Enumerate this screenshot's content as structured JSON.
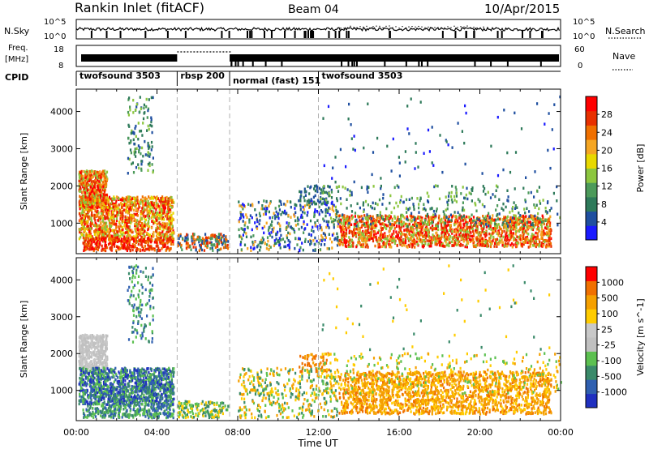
{
  "header": {
    "station": "Rankin Inlet (fitACF)",
    "beam": "Beam 04",
    "date": "10/Apr/2015"
  },
  "strip1": {
    "left_label": "N.Sky",
    "right_label": "N.Search",
    "left_ticks": [
      "10^5",
      "10^0"
    ],
    "right_ticks": [
      "10^5",
      "10^0"
    ]
  },
  "strip2": {
    "left_label_1": "Freq.",
    "left_label_2": "[MHz]",
    "right_label": "Nave",
    "left_ticks": [
      "18",
      "8"
    ],
    "right_ticks": [
      "60",
      "0"
    ]
  },
  "cpid": {
    "label": "CPID",
    "modes": [
      {
        "name": "twofsound 3503",
        "start_h": 0.0,
        "end_h": 5.0
      },
      {
        "name": "rbsp 200",
        "start_h": 5.0,
        "end_h": 7.6
      },
      {
        "name": "normal (fast) 151",
        "start_h": 7.6,
        "end_h": 12.0
      },
      {
        "name": "twofsound 3503",
        "start_h": 12.0,
        "end_h": 24.0
      }
    ]
  },
  "colors": {
    "power": [
      "#1a1aff",
      "#1f4fa0",
      "#2e7a5a",
      "#4c9a5a",
      "#8cc63f",
      "#e8d800",
      "#f5a623",
      "#f07000",
      "#e83000",
      "#ff0000"
    ],
    "velocity": [
      "#2030c0",
      "#3060b0",
      "#3a8a6a",
      "#5cc050",
      "#c0c0c0",
      "#c8c8c8",
      "#ffcc00",
      "#f5a000",
      "#f07000",
      "#ff0000"
    ]
  },
  "chart_data": [
    {
      "type": "heatmap",
      "title": "Power",
      "xlabel": "",
      "ylabel": "Slant Range [km]",
      "xlim": [
        0,
        24
      ],
      "ylim": [
        180,
        4600
      ],
      "y_ticks": [
        "1000",
        "2000",
        "3000",
        "4000"
      ],
      "colorbar": {
        "label": "Power [dB]",
        "ticks": [
          "4",
          "8",
          "12",
          "16",
          "20",
          "24",
          "28"
        ]
      },
      "dashed_lines_h": [
        5.0,
        7.6,
        12.0
      ]
    },
    {
      "type": "heatmap",
      "title": "Velocity",
      "xlabel": "Time UT",
      "ylabel": "Slant Range [km]",
      "xlim": [
        0,
        24
      ],
      "ylim": [
        180,
        4600
      ],
      "x_ticks": [
        "00:00",
        "04:00",
        "08:00",
        "12:00",
        "16:00",
        "20:00",
        "00:00"
      ],
      "y_ticks": [
        "1000",
        "2000",
        "3000",
        "4000"
      ],
      "colorbar": {
        "label": "Velocity [m s^-1]",
        "ticks": [
          "1000",
          "500",
          "100",
          "25",
          "-25",
          "-100",
          "-500",
          "-1000"
        ]
      },
      "dashed_lines_h": [
        5.0,
        7.6,
        12.0
      ]
    }
  ]
}
